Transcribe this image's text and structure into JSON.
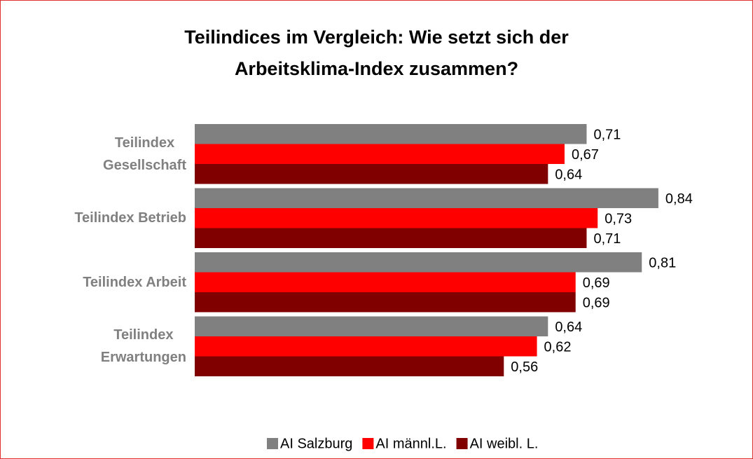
{
  "chart_data": {
    "type": "hbar",
    "title": "Teilindices im Vergleich: Wie setzt sich der\nArbeitsklima-Index zusammen?",
    "categories": [
      "Teilindex\nGesellschaft",
      "Teilindex Betrieb",
      "Teilindex Arbeit",
      "Teilindex\nErwartungen"
    ],
    "series": [
      {
        "name": "AI Salzburg",
        "color": "#808080",
        "values": [
          0.71,
          0.84,
          0.81,
          0.64
        ],
        "value_labels": [
          "0,71",
          "0,84",
          "0,81",
          "0,64"
        ]
      },
      {
        "name": "AI männl.L.",
        "color": "#ff0000",
        "values": [
          0.67,
          0.73,
          0.69,
          0.62
        ],
        "value_labels": [
          "0,67",
          "0,73",
          "0,69",
          "0,62"
        ]
      },
      {
        "name": "AI weibl. L.",
        "color": "#800000",
        "values": [
          0.64,
          0.71,
          0.69,
          0.56
        ],
        "value_labels": [
          "0,64",
          "0,71",
          "0,69",
          "0,56"
        ]
      }
    ],
    "xlim": [
      0,
      1
    ],
    "legend": "bottom"
  }
}
